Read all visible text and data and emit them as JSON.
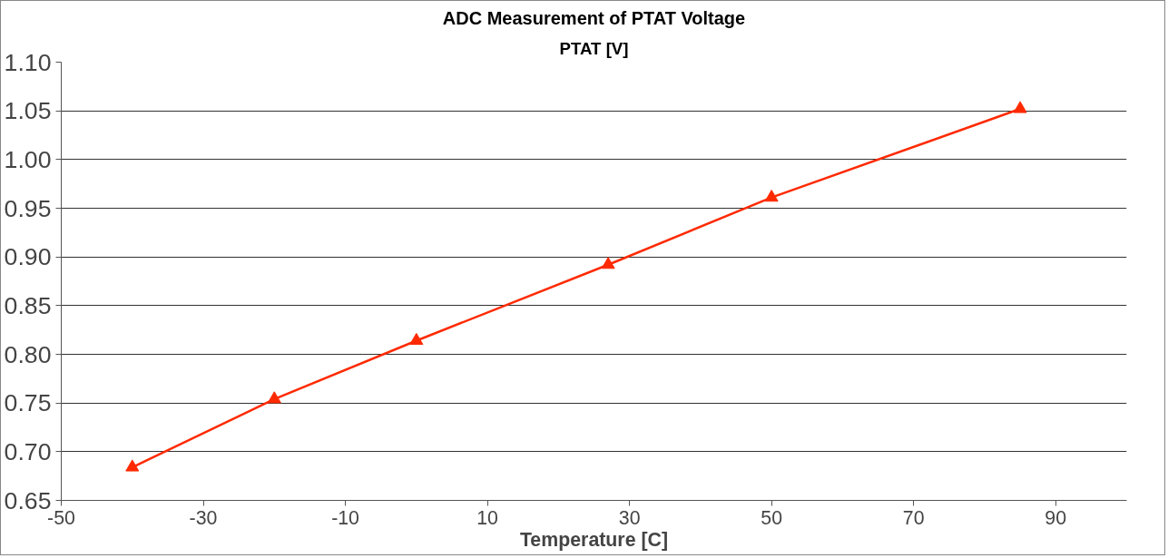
{
  "chart_data": {
    "type": "line",
    "title": "ADC Measurement of PTAT Voltage",
    "subtitle": "PTAT [V]",
    "xlabel": "Temperature [C]",
    "x": [
      -40,
      -20,
      0,
      27,
      50,
      85
    ],
    "series": [
      {
        "color": "#ff2a00",
        "values": [
          0.684,
          0.754,
          0.814,
          0.892,
          0.961,
          1.052
        ]
      }
    ],
    "xlim": [
      -50,
      100
    ],
    "xticks": [
      -50,
      -30,
      -10,
      10,
      30,
      50,
      70,
      90
    ],
    "ylim": [
      0.65,
      1.1
    ],
    "yticks": [
      {
        "value": 0.65,
        "label": "0.65"
      },
      {
        "value": 0.7,
        "label": "0.70"
      },
      {
        "value": 0.75,
        "label": "0.75"
      },
      {
        "value": 0.8,
        "label": "0.80"
      },
      {
        "value": 0.85,
        "label": "0.85"
      },
      {
        "value": 0.9,
        "label": "0.90"
      },
      {
        "value": 0.95,
        "label": "0.95"
      },
      {
        "value": 1.0,
        "label": "1.00"
      },
      {
        "value": 1.05,
        "label": "1.05"
      },
      {
        "value": 1.1,
        "label": "1.10"
      }
    ],
    "grid": "y",
    "marker": "triangle",
    "line_style": "solid"
  }
}
